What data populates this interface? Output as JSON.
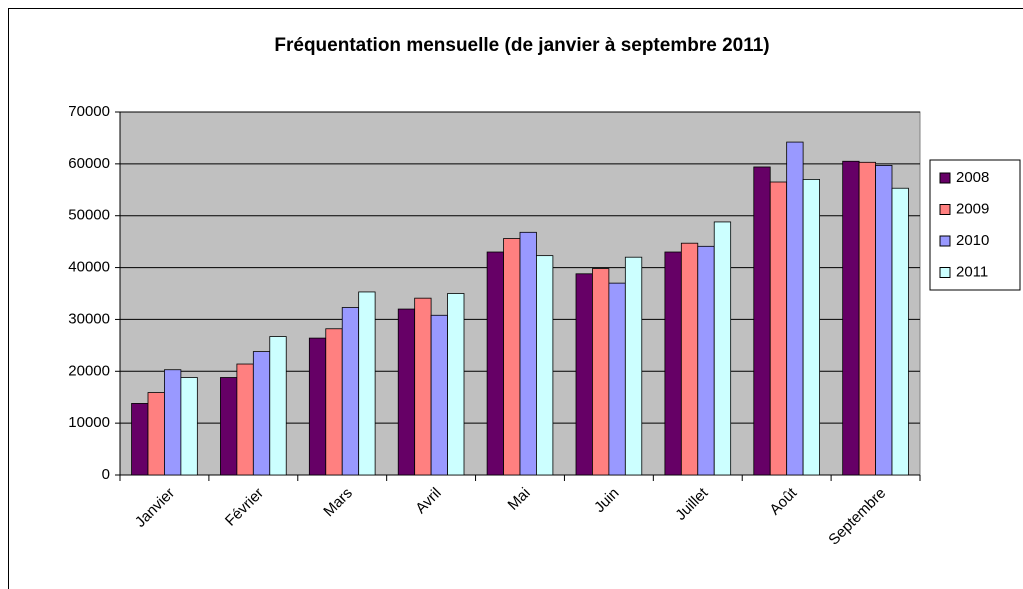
{
  "chart_data": {
    "type": "bar",
    "title": "Fréquentation mensuelle (de janvier à septembre 2011)",
    "categories": [
      "Janvier",
      "Février",
      "Mars",
      "Avril",
      "Mai",
      "Juin",
      "Juillet",
      "Août",
      "Septembre"
    ],
    "series": [
      {
        "name": "2008",
        "color": "#660066",
        "values": [
          13800,
          18800,
          26400,
          32000,
          43000,
          38800,
          43000,
          59400,
          60500
        ]
      },
      {
        "name": "2009",
        "color": "#ff8080",
        "values": [
          15900,
          21400,
          28200,
          34100,
          45600,
          39800,
          44700,
          56500,
          60300
        ]
      },
      {
        "name": "2010",
        "color": "#9999ff",
        "values": [
          20300,
          23800,
          32300,
          30800,
          46800,
          37000,
          44100,
          64200,
          59700
        ]
      },
      {
        "name": "2011",
        "color": "#ccffff",
        "values": [
          18800,
          26700,
          35300,
          35000,
          42300,
          42000,
          48800,
          57000,
          55300
        ]
      }
    ],
    "ylim": [
      0,
      70000
    ],
    "yticks": [
      0,
      10000,
      20000,
      30000,
      40000,
      50000,
      60000,
      70000
    ],
    "grid": true,
    "legend": "right",
    "plot_background": "#c0c0c0"
  }
}
